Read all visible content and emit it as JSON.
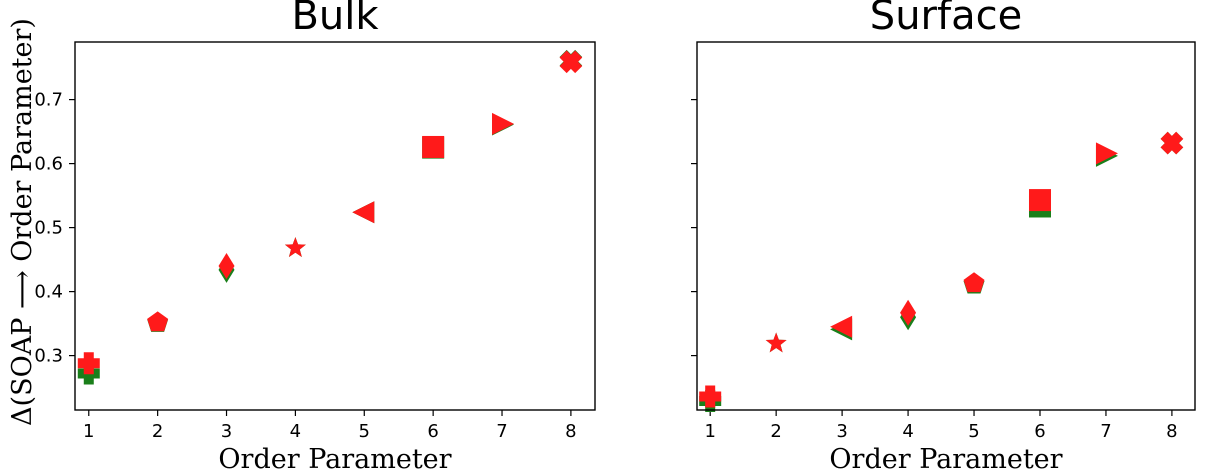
{
  "figure": {
    "ylabel": "Δ(SOAP ⟶ Order Parameter)"
  },
  "colors": {
    "green": "#1a7f1a",
    "red": "#ff1a1a"
  },
  "chart_data": [
    {
      "type": "scatter",
      "title": "Bulk",
      "xlabel": "Order Parameter",
      "ylabel": "Δ(SOAP ⟶ Order Parameter)",
      "xlim": [
        0.8,
        8.35
      ],
      "ylim": [
        0.215,
        0.79
      ],
      "xticks": [
        1,
        2,
        3,
        4,
        5,
        6,
        7,
        8
      ],
      "yticks": [
        0.3,
        0.4,
        0.5,
        0.6,
        0.7
      ],
      "markers": [
        "plus",
        "pentagon",
        "diamond",
        "star",
        "triangle-left",
        "square",
        "triangle-right",
        "x"
      ],
      "series": [
        {
          "color": "#1a7f1a",
          "x": [
            1,
            2,
            3,
            4,
            5,
            6,
            7,
            8
          ],
          "y": [
            0.272,
            0.351,
            0.434,
            0.468,
            0.524,
            0.625,
            0.661,
            0.76
          ]
        },
        {
          "color": "#ff1a1a",
          "x": [
            1,
            2,
            3,
            4,
            5,
            6,
            7,
            8
          ],
          "y": [
            0.288,
            0.352,
            0.44,
            0.468,
            0.524,
            0.626,
            0.662,
            0.759
          ]
        }
      ]
    },
    {
      "type": "scatter",
      "title": "Surface",
      "xlabel": "Order Parameter",
      "ylabel": "",
      "xlim": [
        0.8,
        8.35
      ],
      "ylim": [
        0.215,
        0.79
      ],
      "xticks": [
        1,
        2,
        3,
        4,
        5,
        6,
        7,
        8
      ],
      "yticks": [
        0.3,
        0.4,
        0.5,
        0.6,
        0.7
      ],
      "markers": [
        "plus",
        "star",
        "triangle-left",
        "diamond",
        "pentagon",
        "square",
        "triangle-right",
        "x"
      ],
      "series": [
        {
          "color": "#1a7f1a",
          "x": [
            1,
            2,
            3,
            4,
            5,
            6,
            7,
            8
          ],
          "y": [
            0.229,
            0.319,
            0.341,
            0.36,
            0.411,
            0.533,
            0.612,
            0.632
          ]
        },
        {
          "color": "#ff1a1a",
          "x": [
            1,
            2,
            3,
            4,
            5,
            6,
            7,
            8
          ],
          "y": [
            0.236,
            0.319,
            0.345,
            0.367,
            0.413,
            0.543,
            0.616,
            0.632
          ]
        }
      ]
    }
  ]
}
